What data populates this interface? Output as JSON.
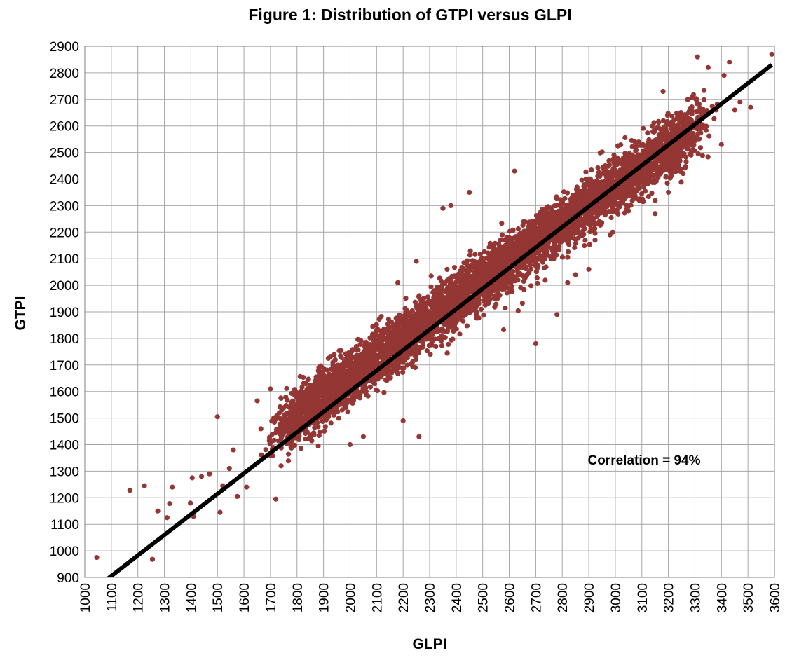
{
  "chart_data": {
    "type": "scatter",
    "title": "Figure 1: Distribution of GTPI versus GLPI",
    "xlabel": "GLPI",
    "ylabel": "GTPI",
    "xlim": [
      1000,
      3600
    ],
    "ylim": [
      900,
      2900
    ],
    "xticks": [
      "1000",
      "1100",
      "1200",
      "1300",
      "1400",
      "1500",
      "1600",
      "1700",
      "1800",
      "1900",
      "2000",
      "2100",
      "2200",
      "2300",
      "2400",
      "2500",
      "2600",
      "2700",
      "2800",
      "2900",
      "3000",
      "3100",
      "3200",
      "3300",
      "3400",
      "3500",
      "3600"
    ],
    "yticks": [
      "900",
      "1000",
      "1100",
      "1200",
      "1300",
      "1400",
      "1500",
      "1600",
      "1700",
      "1800",
      "1900",
      "2000",
      "2100",
      "2200",
      "2300",
      "2400",
      "2500",
      "2600",
      "2700",
      "2800",
      "2900"
    ],
    "grid": true,
    "legend": "none",
    "colors": {
      "points": "#943634",
      "trendline": "#000000",
      "grid": "#a6a6a6"
    },
    "annotation": "Correlation = 94%",
    "trendline": {
      "x": [
        1080,
        3590
      ],
      "y": [
        890,
        2830
      ]
    },
    "point_cloud": {
      "description_of_band": "dense elongated band along the trendline",
      "band_center": {
        "x": [
          1750,
          3300
        ],
        "y": [
          1475,
          2590
        ]
      },
      "band_halfwidth_gtpi": 85,
      "count": 5200
    },
    "series": [
      {
        "values_sampled_outliers": [
          [
            1045,
            975
          ],
          [
            1170,
            1228
          ],
          [
            1225,
            1245
          ],
          [
            1255,
            968
          ],
          [
            1275,
            1150
          ],
          [
            1310,
            1125
          ],
          [
            1320,
            1178
          ],
          [
            1330,
            1240
          ],
          [
            1398,
            1180
          ],
          [
            1410,
            1130
          ],
          [
            1405,
            1275
          ],
          [
            1440,
            1280
          ],
          [
            1470,
            1290
          ],
          [
            1500,
            1505
          ],
          [
            1510,
            1145
          ],
          [
            1520,
            1245
          ],
          [
            1545,
            1310
          ],
          [
            1560,
            1380
          ],
          [
            1575,
            1205
          ],
          [
            1610,
            1240
          ],
          [
            1650,
            1565
          ],
          [
            1700,
            1610
          ],
          [
            1720,
            1195
          ],
          [
            1740,
            1320
          ],
          [
            1850,
            1420
          ],
          [
            1880,
            1395
          ],
          [
            2000,
            1400
          ],
          [
            2050,
            1430
          ],
          [
            2200,
            1490
          ],
          [
            2260,
            1430
          ],
          [
            2180,
            2010
          ],
          [
            2250,
            2090
          ],
          [
            2350,
            2290
          ],
          [
            2380,
            2300
          ],
          [
            2450,
            2350
          ],
          [
            2620,
            2430
          ],
          [
            2700,
            1780
          ],
          [
            2780,
            1890
          ],
          [
            2820,
            2010
          ],
          [
            2850,
            2040
          ],
          [
            2900,
            2060
          ],
          [
            2960,
            2280
          ],
          [
            2980,
            2190
          ],
          [
            3050,
            2280
          ],
          [
            3150,
            2270
          ],
          [
            3180,
            2730
          ],
          [
            3200,
            2350
          ],
          [
            3270,
            2540
          ],
          [
            3310,
            2860
          ],
          [
            3350,
            2820
          ],
          [
            3380,
            2660
          ],
          [
            3400,
            2530
          ],
          [
            3410,
            2790
          ],
          [
            3430,
            2840
          ],
          [
            3450,
            2660
          ],
          [
            3470,
            2690
          ],
          [
            3510,
            2670
          ],
          [
            3590,
            2870
          ]
        ]
      }
    ]
  }
}
